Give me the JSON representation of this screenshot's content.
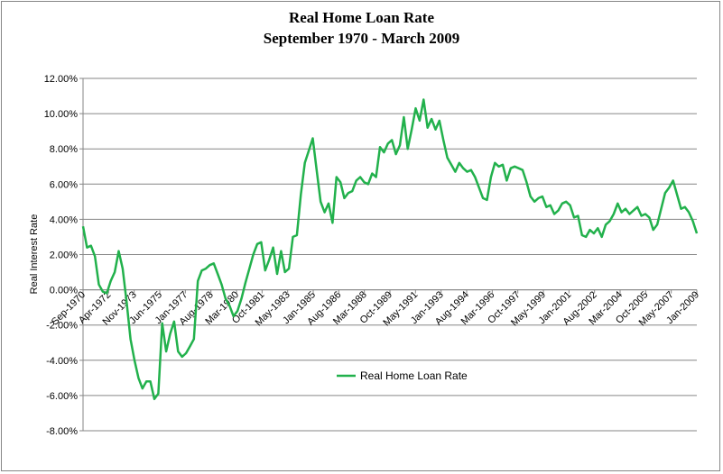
{
  "chart_data": {
    "type": "line",
    "title": "Real Home Loan Rate",
    "subtitle": "September 1970  - March 2009",
    "xlabel": "",
    "ylabel": "Real Interest Rate",
    "ylim": [
      -8,
      12
    ],
    "y_ticks": [
      "-8.00%",
      "-6.00%",
      "-4.00%",
      "-2.00%",
      "0.00%",
      "2.00%",
      "4.00%",
      "6.00%",
      "8.00%",
      "10.00%",
      "12.00%"
    ],
    "x_tick_labels": [
      "Sep-1970",
      "Apr-1972",
      "Nov-1973",
      "Jun-1975",
      "Jan-1977",
      "Aug-1978",
      "Mar-1980",
      "Oct-1981",
      "May-1983",
      "Jan-1985",
      "Aug-1986",
      "Mar-1988",
      "Oct-1989",
      "May-1991",
      "Jan-1993",
      "Aug-1994",
      "Mar-1996",
      "Oct-1997",
      "May-1999",
      "Jan-2001",
      "Aug-2002",
      "Mar-2004",
      "Oct-2005",
      "May-2007",
      "Jan-2009"
    ],
    "grid": "horizontal",
    "legend": "bottom-center",
    "series_color": "#22b14c",
    "series": [
      {
        "name": "Real Home Loan Rate",
        "values": [
          3.6,
          2.4,
          2.5,
          1.9,
          0.3,
          -0.1,
          -0.2,
          0.5,
          1.0,
          2.2,
          1.2,
          -0.7,
          -2.8,
          -4.0,
          -5.0,
          -5.6,
          -5.2,
          -5.2,
          -6.2,
          -5.9,
          -1.9,
          -3.5,
          -2.5,
          -1.8,
          -3.5,
          -3.8,
          -3.6,
          -3.2,
          -2.8,
          0.5,
          1.1,
          1.2,
          1.4,
          1.5,
          0.9,
          0.3,
          -0.5,
          -0.9,
          -1.5,
          -1.2,
          -0.5,
          0.4,
          1.2,
          2.0,
          2.6,
          2.7,
          1.1,
          1.7,
          2.4,
          0.9,
          2.2,
          1.0,
          1.2,
          3.0,
          3.1,
          5.4,
          7.2,
          7.9,
          8.6,
          6.8,
          5.0,
          4.4,
          4.9,
          3.8,
          6.4,
          6.1,
          5.2,
          5.5,
          5.6,
          6.2,
          6.4,
          6.1,
          6.0,
          6.6,
          6.4,
          8.1,
          7.8,
          8.3,
          8.5,
          7.7,
          8.2,
          9.8,
          8.0,
          9.1,
          10.3,
          9.6,
          10.8,
          9.2,
          9.7,
          9.1,
          9.6,
          8.5,
          7.5,
          7.1,
          6.7,
          7.2,
          6.9,
          6.7,
          6.8,
          6.4,
          5.8,
          5.2,
          5.1,
          6.4,
          7.2,
          7.0,
          7.1,
          6.2,
          6.9,
          7.0,
          6.9,
          6.8,
          6.1,
          5.3,
          5.0,
          5.2,
          5.3,
          4.7,
          4.8,
          4.3,
          4.5,
          4.9,
          5.0,
          4.8,
          4.1,
          4.2,
          3.1,
          3.0,
          3.4,
          3.2,
          3.5,
          3.0,
          3.7,
          3.9,
          4.3,
          4.9,
          4.4,
          4.6,
          4.3,
          4.5,
          4.7,
          4.2,
          4.3,
          4.1,
          3.4,
          3.7,
          4.6,
          5.5,
          5.8,
          6.2,
          5.4,
          4.6,
          4.7,
          4.4,
          3.9,
          3.2
        ]
      }
    ]
  }
}
